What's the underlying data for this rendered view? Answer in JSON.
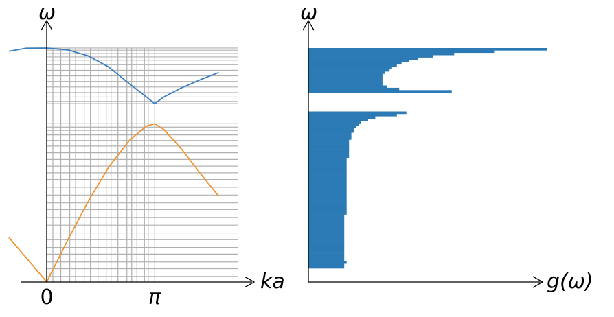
{
  "colors": {
    "optical": "#3a7ebd",
    "acoustic": "#f0922f",
    "grid": "#b0b0b0",
    "histogram": "#2c7ab5",
    "axis": "#000000"
  },
  "chart_data": [
    {
      "type": "line",
      "xlabel": "ka",
      "ylabel": "ω",
      "xticks": [
        {
          "value": 0,
          "label": "0"
        },
        {
          "value": 3.14159,
          "label": "π"
        }
      ],
      "xlim": [
        -1.1,
        8.5
      ],
      "ylim": [
        0,
        2.1
      ],
      "series": [
        {
          "branch": "optical",
          "color": "#3a7ebd",
          "x": [
            -1.1,
            -0.6,
            0,
            0.6,
            1.2,
            1.8,
            2.4,
            2.9,
            3.14,
            3.4,
            3.9,
            4.5,
            5.0
          ],
          "y": [
            2.07,
            2.098,
            2.1,
            2.084,
            2.03,
            1.93,
            1.78,
            1.66,
            1.6,
            1.66,
            1.74,
            1.82,
            1.88
          ]
        },
        {
          "branch": "acoustic",
          "color": "#f0922f",
          "x": [
            -1.1,
            -0.6,
            0,
            0.6,
            1.2,
            1.8,
            2.4,
            2.9,
            3.14,
            3.4,
            3.9,
            4.5,
            5.0
          ],
          "y": [
            0.4,
            0.22,
            0,
            0.37,
            0.72,
            1.03,
            1.27,
            1.4,
            1.42,
            1.37,
            1.2,
            0.96,
            0.77
          ]
        }
      ],
      "grid": {
        "k_values": [
          0.18,
          0.41,
          0.67,
          0.84,
          1.09,
          1.27,
          1.49,
          1.73,
          1.87,
          2.07,
          2.33,
          2.47,
          2.62,
          2.84,
          2.95,
          3.14
        ],
        "omega_values": [
          0.05,
          0.12,
          0.18,
          0.25,
          0.31,
          0.38,
          0.44,
          0.51,
          0.58,
          0.65,
          0.71,
          0.78,
          0.85,
          0.92,
          0.98,
          1.04,
          1.1,
          1.16,
          1.22,
          1.27,
          1.32,
          1.36,
          1.39,
          1.42,
          1.6,
          1.62,
          1.66,
          1.7,
          1.75,
          1.8,
          1.85,
          1.9,
          1.95,
          1.99,
          2.02,
          2.05,
          2.08,
          2.1
        ]
      }
    },
    {
      "type": "bar",
      "orientation": "horizontal",
      "xlabel": "g(ω)",
      "ylabel": "ω",
      "ylim": [
        0,
        2.1
      ],
      "xlim": [
        0,
        100
      ],
      "bin_width": 0.021,
      "bins": [
        {
          "omega": 1.99,
          "values": [
            100,
            78,
            61,
            52,
            46,
            42,
            39,
            37,
            35,
            34,
            32,
            31,
            31,
            31,
            31,
            31,
            33,
            38,
            60
          ]
        },
        {
          "omega": 1.42,
          "values": [
            41,
            37,
            28,
            25,
            22,
            21,
            20,
            19,
            19,
            18,
            18,
            18,
            17,
            17,
            17,
            17,
            17,
            17,
            17,
            17,
            16,
            16,
            16,
            16,
            16,
            16,
            16,
            16,
            16,
            16,
            16,
            16,
            16,
            16,
            16,
            16,
            16,
            16,
            16,
            16,
            16,
            16,
            16,
            16,
            15,
            15,
            15,
            15,
            15,
            15,
            15,
            15,
            15,
            15,
            15,
            15,
            15,
            15,
            15,
            15,
            15,
            15,
            15,
            15,
            16,
            15,
            15
          ]
        }
      ]
    }
  ]
}
